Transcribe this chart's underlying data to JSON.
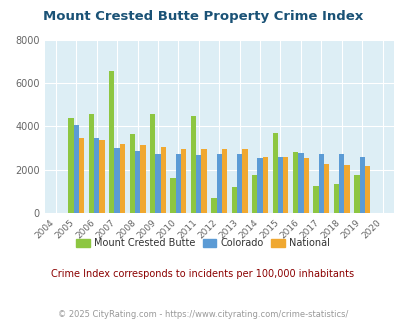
{
  "title": "Mount Crested Butte Property Crime Index",
  "years": [
    2004,
    2005,
    2006,
    2007,
    2008,
    2009,
    2010,
    2011,
    2012,
    2013,
    2014,
    2015,
    2016,
    2017,
    2018,
    2019,
    2020
  ],
  "mount_crested_butte": [
    null,
    4400,
    4550,
    6550,
    3650,
    4550,
    1600,
    4450,
    700,
    1200,
    1750,
    3700,
    2800,
    1250,
    1350,
    1750,
    null
  ],
  "colorado": [
    null,
    4050,
    3450,
    3000,
    2850,
    2700,
    2700,
    2650,
    2700,
    2700,
    2550,
    2600,
    2750,
    2700,
    2700,
    2600,
    null
  ],
  "national": [
    null,
    3450,
    3350,
    3200,
    3150,
    3050,
    2950,
    2950,
    2950,
    2950,
    2600,
    2600,
    2550,
    2250,
    2200,
    2150,
    null
  ],
  "color_mcb": "#8dc641",
  "color_co": "#5b9bd5",
  "color_nat": "#f0a830",
  "bg_color": "#ddeef5",
  "ylim": [
    0,
    8000
  ],
  "yticks": [
    0,
    2000,
    4000,
    6000,
    8000
  ],
  "title_color": "#1a5276",
  "legend_label_mcb": "Mount Crested Butte",
  "legend_label_co": "Colorado",
  "legend_label_nat": "National",
  "subtitle": "Crime Index corresponds to incidents per 100,000 inhabitants",
  "subtitle_color": "#8b0000",
  "footer": "© 2025 CityRating.com - https://www.cityrating.com/crime-statistics/",
  "footer_color": "#999999"
}
